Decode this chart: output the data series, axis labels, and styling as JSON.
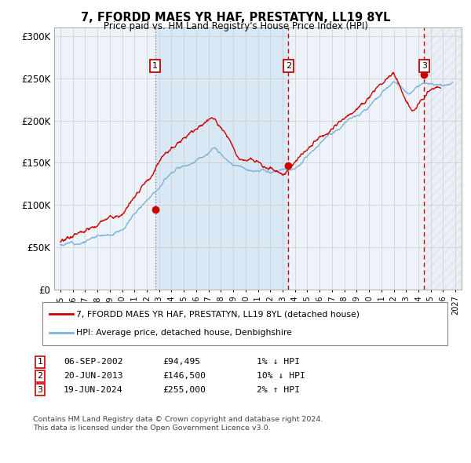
{
  "title": "7, FFORDD MAES YR HAF, PRESTATYN, LL19 8YL",
  "subtitle": "Price paid vs. HM Land Registry's House Price Index (HPI)",
  "hpi_color": "#7ab4d8",
  "price_color": "#cc0000",
  "dot_color": "#cc0000",
  "bg_color": "#ffffff",
  "plot_bg": "#eef3fa",
  "grid_color": "#cccccc",
  "shade_color": "#d8e8f5",
  "sale1_date": 2002.68,
  "sale2_date": 2013.47,
  "sale3_date": 2024.47,
  "sale1_price": 94495,
  "sale2_price": 146500,
  "sale3_price": 255000,
  "legend1": "7, FFORDD MAES YR HAF, PRESTATYN, LL19 8YL (detached house)",
  "legend2": "HPI: Average price, detached house, Denbighshire",
  "table_rows": [
    [
      "1",
      "06-SEP-2002",
      "£94,495",
      "1% ↓ HPI"
    ],
    [
      "2",
      "20-JUN-2013",
      "£146,500",
      "10% ↓ HPI"
    ],
    [
      "3",
      "19-JUN-2024",
      "£255,000",
      "2% ↑ HPI"
    ]
  ],
  "footnote1": "Contains HM Land Registry data © Crown copyright and database right 2024.",
  "footnote2": "This data is licensed under the Open Government Licence v3.0.",
  "ylim": [
    0,
    310000
  ],
  "yticks": [
    0,
    50000,
    100000,
    150000,
    200000,
    250000,
    300000
  ],
  "ytick_labels": [
    "£0",
    "£50K",
    "£100K",
    "£150K",
    "£200K",
    "£250K",
    "£300K"
  ],
  "xstart": 1994.5,
  "xend": 2027.5
}
